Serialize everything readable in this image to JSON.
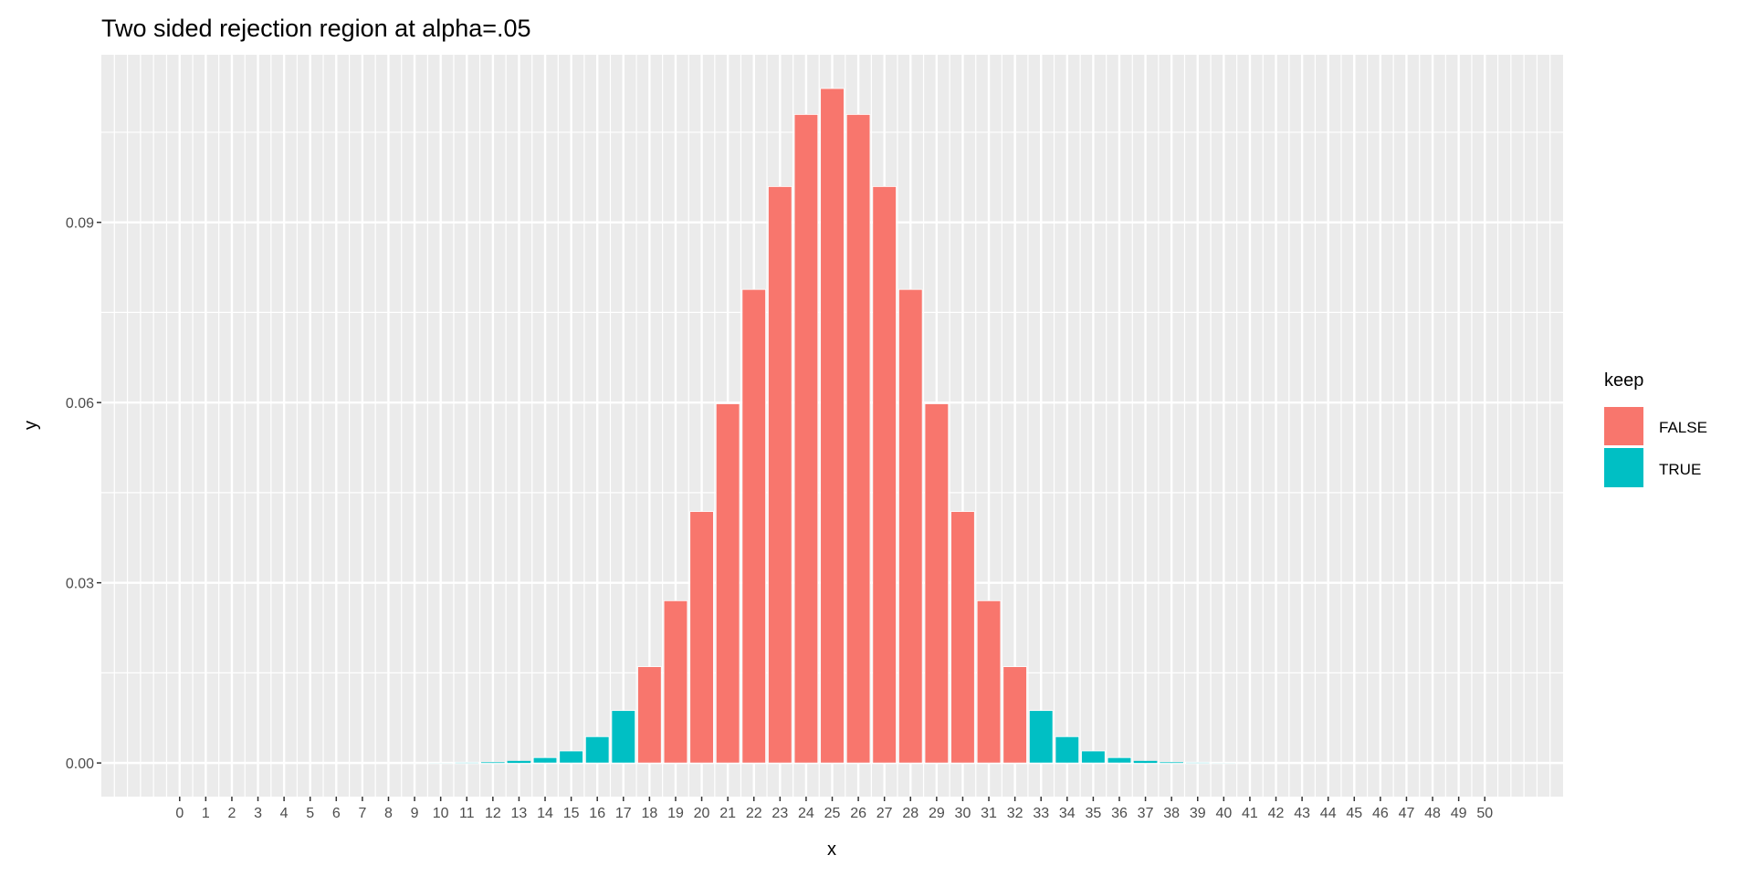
{
  "chart_data": {
    "type": "bar",
    "title": "Two sided rejection region at alpha=.05",
    "xlabel": "x",
    "ylabel": "y",
    "x": [
      0,
      1,
      2,
      3,
      4,
      5,
      6,
      7,
      8,
      9,
      10,
      11,
      12,
      13,
      14,
      15,
      16,
      17,
      18,
      19,
      20,
      21,
      22,
      23,
      24,
      25,
      26,
      27,
      28,
      29,
      30,
      31,
      32,
      33,
      34,
      35,
      36,
      37,
      38,
      39,
      40,
      41,
      42,
      43,
      44,
      45,
      46,
      47,
      48,
      49,
      50
    ],
    "x_tick_labels": [
      "0",
      "1",
      "2",
      "3",
      "4",
      "5",
      "6",
      "7",
      "8",
      "9",
      "10",
      "11",
      "12",
      "13",
      "14",
      "15",
      "16",
      "17",
      "18",
      "19",
      "20",
      "21",
      "22",
      "23",
      "24",
      "25",
      "26",
      "27",
      "28",
      "29",
      "30",
      "31",
      "32",
      "33",
      "34",
      "35",
      "36",
      "37",
      "38",
      "39",
      "40",
      "41",
      "42",
      "43",
      "44",
      "45",
      "46",
      "47",
      "48",
      "49",
      "50"
    ],
    "values": [
      8.9e-16,
      4.4e-14,
      1.09e-12,
      1.75e-11,
      2.06e-10,
      1.88e-09,
      1.41e-08,
      8.68e-08,
      4.56e-07,
      2.03e-06,
      9.12e-06,
      3.56e-05,
      0.000119,
      0.000348,
      0.000895,
      0.002,
      0.00438,
      0.00873,
      0.01603,
      0.02701,
      0.04186,
      0.0598,
      0.07883,
      0.09596,
      0.10796,
      0.11228,
      0.10796,
      0.09596,
      0.07883,
      0.0598,
      0.04186,
      0.02701,
      0.01603,
      0.00873,
      0.00438,
      0.002,
      0.000895,
      0.000348,
      0.000119,
      3.56e-05,
      9.12e-06,
      2.03e-06,
      4.56e-07,
      8.68e-08,
      1.41e-08,
      1.88e-09,
      1.75e-11,
      2.06e-10,
      1.09e-12,
      4.4e-14,
      8.9e-16
    ],
    "keep": [
      true,
      true,
      true,
      true,
      true,
      true,
      true,
      true,
      true,
      true,
      true,
      true,
      true,
      true,
      true,
      true,
      true,
      true,
      false,
      false,
      false,
      false,
      false,
      false,
      false,
      false,
      false,
      false,
      false,
      false,
      false,
      false,
      false,
      true,
      true,
      true,
      true,
      true,
      true,
      true,
      true,
      true,
      true,
      true,
      true,
      true,
      true,
      true,
      true,
      true,
      true
    ],
    "y_ticks": [
      0,
      0.03,
      0.06,
      0.09
    ],
    "y_tick_labels": [
      "0.00",
      "0.03",
      "0.06",
      "0.09"
    ],
    "ylim": [
      -0.0056,
      0.1179
    ],
    "xlim": [
      -3,
      53
    ],
    "grid": true,
    "legend": {
      "title": "keep",
      "position": "right",
      "entries": [
        {
          "label": "FALSE",
          "color": "#F8766D"
        },
        {
          "label": "TRUE",
          "color": "#00BFC4"
        }
      ]
    },
    "colors": {
      "FALSE": "#F8766D",
      "TRUE": "#00BFC4",
      "panel": "#EBEBEB",
      "grid": "#FFFFFF"
    }
  }
}
